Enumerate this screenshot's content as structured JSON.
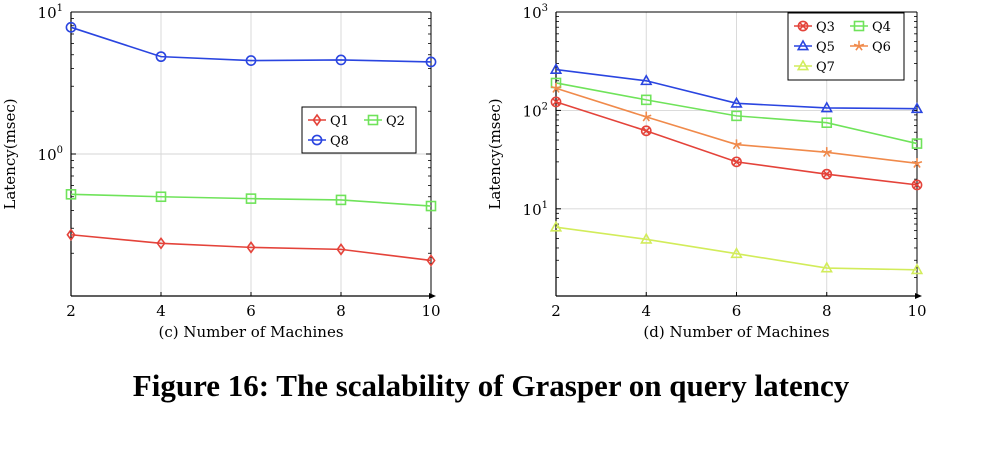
{
  "figure_caption": "Figure 16: The scalability of Grasper on query latency",
  "chart_data": [
    {
      "type": "line",
      "subplot": "c",
      "xlabel": "(c) Number of Machines",
      "ylabel": "Latency(msec)",
      "yscale": "log",
      "x": [
        2,
        4,
        6,
        8,
        10
      ],
      "xticks": [
        "2",
        "4",
        "6",
        "8",
        "10"
      ],
      "yticks": [
        {
          "base": "10",
          "exp": "0",
          "value": 1
        },
        {
          "base": "10",
          "exp": "1",
          "value": 10
        }
      ],
      "ylim": [
        0.1,
        10
      ],
      "grid": true,
      "legend_position": "center-right",
      "legend_columns": 2,
      "series": [
        {
          "name": "Q1",
          "values": [
            0.27,
            0.235,
            0.22,
            0.213,
            0.178
          ],
          "color": "#e4433a",
          "marker": "diamond"
        },
        {
          "name": "Q2",
          "values": [
            0.52,
            0.5,
            0.485,
            0.475,
            0.43
          ],
          "color": "#6fe35a",
          "marker": "square"
        },
        {
          "name": "Q8",
          "values": [
            7.8,
            4.85,
            4.55,
            4.6,
            4.45
          ],
          "color": "#2a45e0",
          "marker": "circle"
        }
      ]
    },
    {
      "type": "line",
      "subplot": "d",
      "xlabel": "(d) Number of Machines",
      "ylabel": "Latency(msec)",
      "yscale": "log",
      "x": [
        2,
        4,
        6,
        8,
        10
      ],
      "xticks": [
        "2",
        "4",
        "6",
        "8",
        "10"
      ],
      "yticks": [
        {
          "base": "10",
          "exp": "1",
          "value": 10
        },
        {
          "base": "10",
          "exp": "2",
          "value": 100
        },
        {
          "base": "10",
          "exp": "3",
          "value": 1000
        }
      ],
      "ylim": [
        1.3,
        1000
      ],
      "grid": true,
      "legend_position": "top-right",
      "legend_columns": 2,
      "series": [
        {
          "name": "Q3",
          "values": [
            122,
            62,
            30,
            22.5,
            17.5
          ],
          "color": "#e4433a",
          "marker": "circle-x"
        },
        {
          "name": "Q4",
          "values": [
            190,
            128,
            88,
            75,
            46
          ],
          "color": "#6fe35a",
          "marker": "square"
        },
        {
          "name": "Q5",
          "values": [
            260,
            200,
            118,
            106,
            104
          ],
          "color": "#2a45e0",
          "marker": "triangle"
        },
        {
          "name": "Q6",
          "values": [
            168,
            86,
            45,
            37.5,
            29
          ],
          "color": "#f08a4b",
          "marker": "star"
        },
        {
          "name": "Q7",
          "values": [
            6.5,
            4.9,
            3.5,
            2.5,
            2.4
          ],
          "color": "#d2ec5a",
          "marker": "triangle"
        }
      ]
    }
  ]
}
